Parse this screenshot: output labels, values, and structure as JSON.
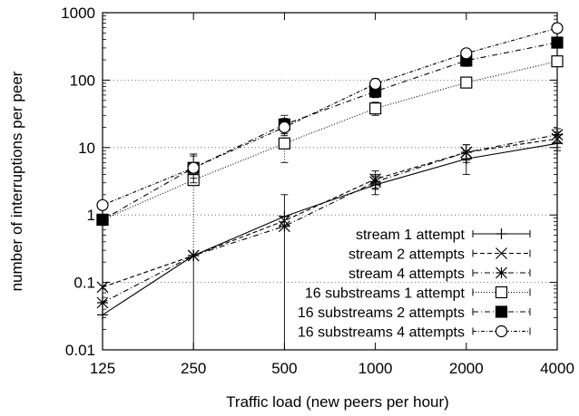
{
  "chart_data": {
    "type": "line",
    "title": "",
    "xlabel": "Traffic load (new peers per hour)",
    "ylabel": "number of interruptions per peer",
    "x_scale": "log",
    "y_scale": "log",
    "x": [
      125,
      250,
      500,
      1000,
      2000,
      4000
    ],
    "x_tick_labels": [
      "125",
      "250",
      "500",
      "1000",
      "2000",
      "4000"
    ],
    "y_ticks": [
      0.01,
      0.1,
      1,
      10,
      100,
      1000
    ],
    "y_tick_labels": [
      "0.01",
      "0.1",
      "1",
      "10",
      "100",
      "1000"
    ],
    "xlim": [
      125,
      4000
    ],
    "ylim": [
      0.01,
      1000
    ],
    "grid": true,
    "legend_position": "bottom-right",
    "series": [
      {
        "name": "stream  1 attempt",
        "marker": "plus",
        "dash": "solid",
        "values": [
          0.033,
          0.25,
          0.95,
          2.8,
          6.8,
          11.5
        ],
        "error_low": [
          0.033,
          0.0,
          0.0,
          2.0,
          4.0,
          9.0
        ],
        "error_high": [
          0.033,
          0.25,
          2.0,
          3.8,
          9.0,
          14.0
        ]
      },
      {
        "name": "stream  2 attempts",
        "marker": "x",
        "dash": "dashed",
        "values": [
          0.085,
          0.25,
          0.82,
          3.4,
          8.5,
          13.5
        ],
        "error_low": [
          0.085,
          0.25,
          0.82,
          2.5,
          6.0,
          10.0
        ],
        "error_high": [
          0.085,
          0.25,
          0.82,
          4.5,
          11.0,
          17.0
        ]
      },
      {
        "name": "stream  4 attempts",
        "marker": "star",
        "dash": "dash-dot",
        "values": [
          0.05,
          0.25,
          0.68,
          3.1,
          8.5,
          15.5
        ],
        "error_low": [
          0.05,
          0.25,
          0.68,
          2.4,
          6.5,
          12.0
        ],
        "error_high": [
          0.05,
          0.25,
          0.68,
          4.0,
          11.0,
          19.0
        ]
      },
      {
        "name": "16 substreams  1 attempt",
        "marker": "open-square",
        "dash": "dotted",
        "values": [
          0.85,
          3.3,
          11.5,
          38,
          92,
          190
        ],
        "error_low": [
          0.85,
          0.25,
          6.0,
          30,
          80,
          170
        ],
        "error_high": [
          0.85,
          8.0,
          17.0,
          47,
          105,
          215
        ]
      },
      {
        "name": "16 substreams  2 attempts",
        "marker": "filled-square",
        "dash": "dash-dot",
        "values": [
          0.85,
          5.0,
          22,
          68,
          195,
          360
        ],
        "error_low": [
          0.85,
          3.0,
          16,
          55,
          160,
          310
        ],
        "error_high": [
          0.85,
          8.0,
          30,
          85,
          240,
          420
        ]
      },
      {
        "name": "16 substreams  4 attempts",
        "marker": "open-circle",
        "dash": "dash-dot-fine",
        "values": [
          1.4,
          5.0,
          20,
          88,
          250,
          590
        ],
        "error_low": [
          1.4,
          3.5,
          15,
          75,
          210,
          520
        ],
        "error_high": [
          1.4,
          7.5,
          27,
          105,
          290,
          660
        ]
      }
    ]
  }
}
